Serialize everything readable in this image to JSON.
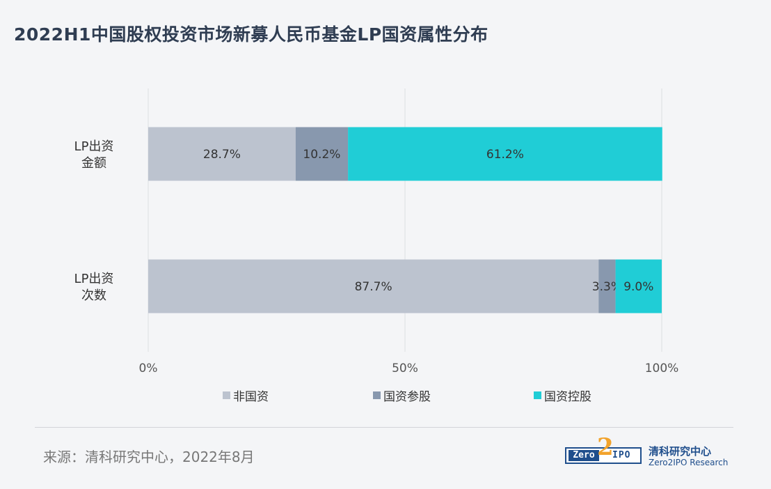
{
  "title": "2022H1中国股权投资市场新募人民币基金LP国资属性分布",
  "chart_data": {
    "type": "bar",
    "orientation": "horizontal",
    "stacked": true,
    "categories": [
      {
        "lines": [
          "LP出资",
          "金额"
        ]
      },
      {
        "lines": [
          "LP出资",
          "次数"
        ]
      }
    ],
    "series": [
      {
        "name": "非国资",
        "color": "#bcc3cf",
        "values": [
          28.7,
          87.7
        ],
        "labels": [
          "28.7%",
          "87.7%"
        ]
      },
      {
        "name": "国资参股",
        "color": "#8898ae",
        "values": [
          10.2,
          3.3
        ],
        "labels": [
          "10.2%",
          "3.3%"
        ]
      },
      {
        "name": "国资控股",
        "color": "#20cdd6",
        "values": [
          61.2,
          9.0
        ],
        "labels": [
          "61.2%",
          "9.0%"
        ]
      }
    ],
    "xlim": [
      0,
      100
    ],
    "xticks": [
      {
        "value": 0,
        "label": "0%"
      },
      {
        "value": 50,
        "label": "50%"
      },
      {
        "value": 100,
        "label": "100%"
      }
    ],
    "grid": true,
    "legend": "bottom"
  },
  "footer": {
    "source": "来源：清科研究中心，2022年8月",
    "logo_zero": "Zero",
    "logo_two": "2",
    "logo_ipo": "IPO",
    "logo_cn": "清科研究中心",
    "logo_en": "Zero2IPO Research"
  }
}
